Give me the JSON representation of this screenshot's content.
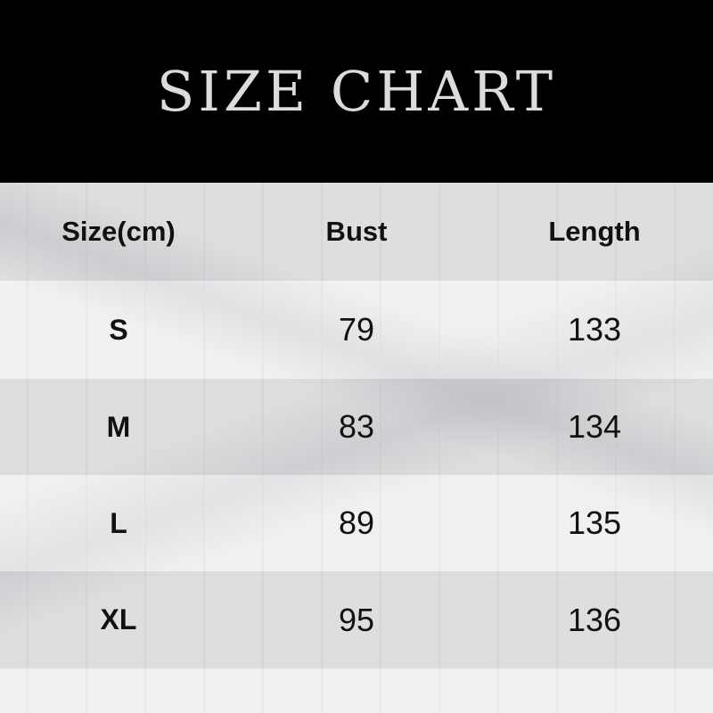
{
  "title": "SIZE CHART",
  "chart_data": {
    "type": "table",
    "columns": [
      "Size(cm)",
      "Bust",
      "Length"
    ],
    "rows": [
      [
        "S",
        "79",
        "133"
      ],
      [
        "M",
        "83",
        "134"
      ],
      [
        "L",
        "89",
        "135"
      ],
      [
        "XL",
        "95",
        "136"
      ]
    ]
  }
}
